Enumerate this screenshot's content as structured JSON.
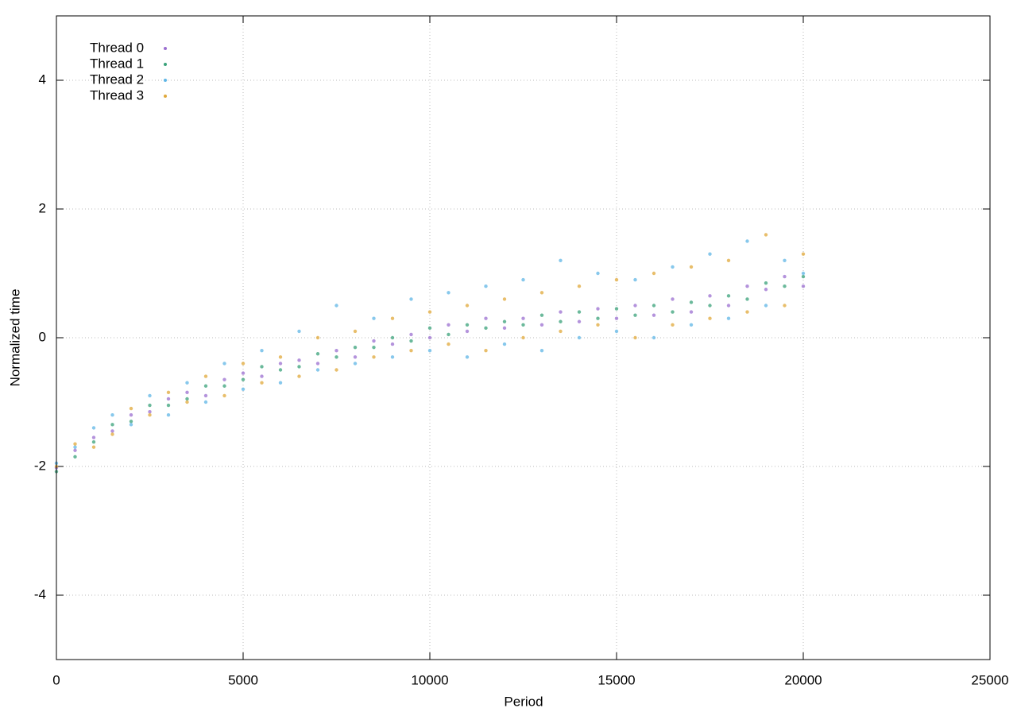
{
  "chart_data": {
    "type": "scatter",
    "xlabel": "Period",
    "ylabel": "Normalized time",
    "xlim": [
      0,
      25000
    ],
    "ylim": [
      -5,
      5
    ],
    "xticks": [
      0,
      5000,
      10000,
      15000,
      20000,
      25000
    ],
    "yticks": [
      -4,
      -2,
      0,
      2,
      4
    ],
    "grid": true,
    "legend": "upper left",
    "x": [
      0,
      500,
      1000,
      1500,
      2000,
      2500,
      3000,
      3500,
      4000,
      4500,
      5000,
      5500,
      6000,
      6500,
      7000,
      7500,
      8000,
      8500,
      9000,
      9500,
      10000,
      10500,
      11000,
      11500,
      12000,
      12500,
      13000,
      13500,
      14000,
      14500,
      15000,
      15500,
      16000,
      16500,
      17000,
      17500,
      18000,
      18500,
      19000,
      19500,
      20000
    ],
    "series": [
      {
        "name": "Thread 0",
        "color": "#9b6fd0",
        "values": [
          -2.02,
          -1.75,
          -1.55,
          -1.45,
          -1.2,
          -1.15,
          -0.95,
          -0.85,
          -0.9,
          -0.65,
          -0.55,
          -0.6,
          -0.4,
          -0.35,
          -0.4,
          -0.2,
          -0.3,
          -0.05,
          -0.1,
          0.05,
          0.0,
          0.2,
          0.1,
          0.3,
          0.15,
          0.3,
          0.2,
          0.4,
          0.25,
          0.45,
          0.3,
          0.5,
          0.35,
          0.6,
          0.4,
          0.65,
          0.5,
          0.8,
          0.75,
          0.95,
          0.8
        ]
      },
      {
        "name": "Thread 1",
        "color": "#3aa27a",
        "values": [
          -2.08,
          -1.85,
          -1.62,
          -1.35,
          -1.3,
          -1.05,
          -1.05,
          -0.95,
          -0.75,
          -0.75,
          -0.65,
          -0.45,
          -0.5,
          -0.45,
          -0.25,
          -0.3,
          -0.15,
          -0.15,
          0.0,
          -0.05,
          0.15,
          0.05,
          0.2,
          0.15,
          0.25,
          0.2,
          0.35,
          0.25,
          0.4,
          0.3,
          0.45,
          0.35,
          0.5,
          0.4,
          0.55,
          0.5,
          0.65,
          0.6,
          0.85,
          0.8,
          0.95
        ]
      },
      {
        "name": "Thread 2",
        "color": "#5fb6e6",
        "values": [
          -1.95,
          -1.7,
          -1.4,
          -1.2,
          -1.35,
          -0.9,
          -1.2,
          -0.7,
          -1.0,
          -0.4,
          -0.8,
          -0.2,
          -0.7,
          0.1,
          -0.5,
          0.5,
          -0.4,
          0.3,
          -0.3,
          0.6,
          -0.2,
          0.7,
          -0.3,
          0.8,
          -0.1,
          0.9,
          -0.2,
          1.2,
          0.0,
          1.0,
          0.1,
          0.9,
          0.0,
          1.1,
          0.2,
          1.3,
          0.3,
          1.5,
          0.5,
          1.2,
          1.0
        ]
      },
      {
        "name": "Thread 3",
        "color": "#e0a83a",
        "values": [
          -2.0,
          -1.65,
          -1.7,
          -1.5,
          -1.1,
          -1.2,
          -0.85,
          -1.0,
          -0.6,
          -0.9,
          -0.4,
          -0.7,
          -0.3,
          -0.6,
          0.0,
          -0.5,
          0.1,
          -0.3,
          0.3,
          -0.2,
          0.4,
          -0.1,
          0.5,
          -0.2,
          0.6,
          0.0,
          0.7,
          0.1,
          0.8,
          0.2,
          0.9,
          0.0,
          1.0,
          0.2,
          1.1,
          0.3,
          1.2,
          0.4,
          1.6,
          0.5,
          1.3
        ]
      }
    ]
  }
}
